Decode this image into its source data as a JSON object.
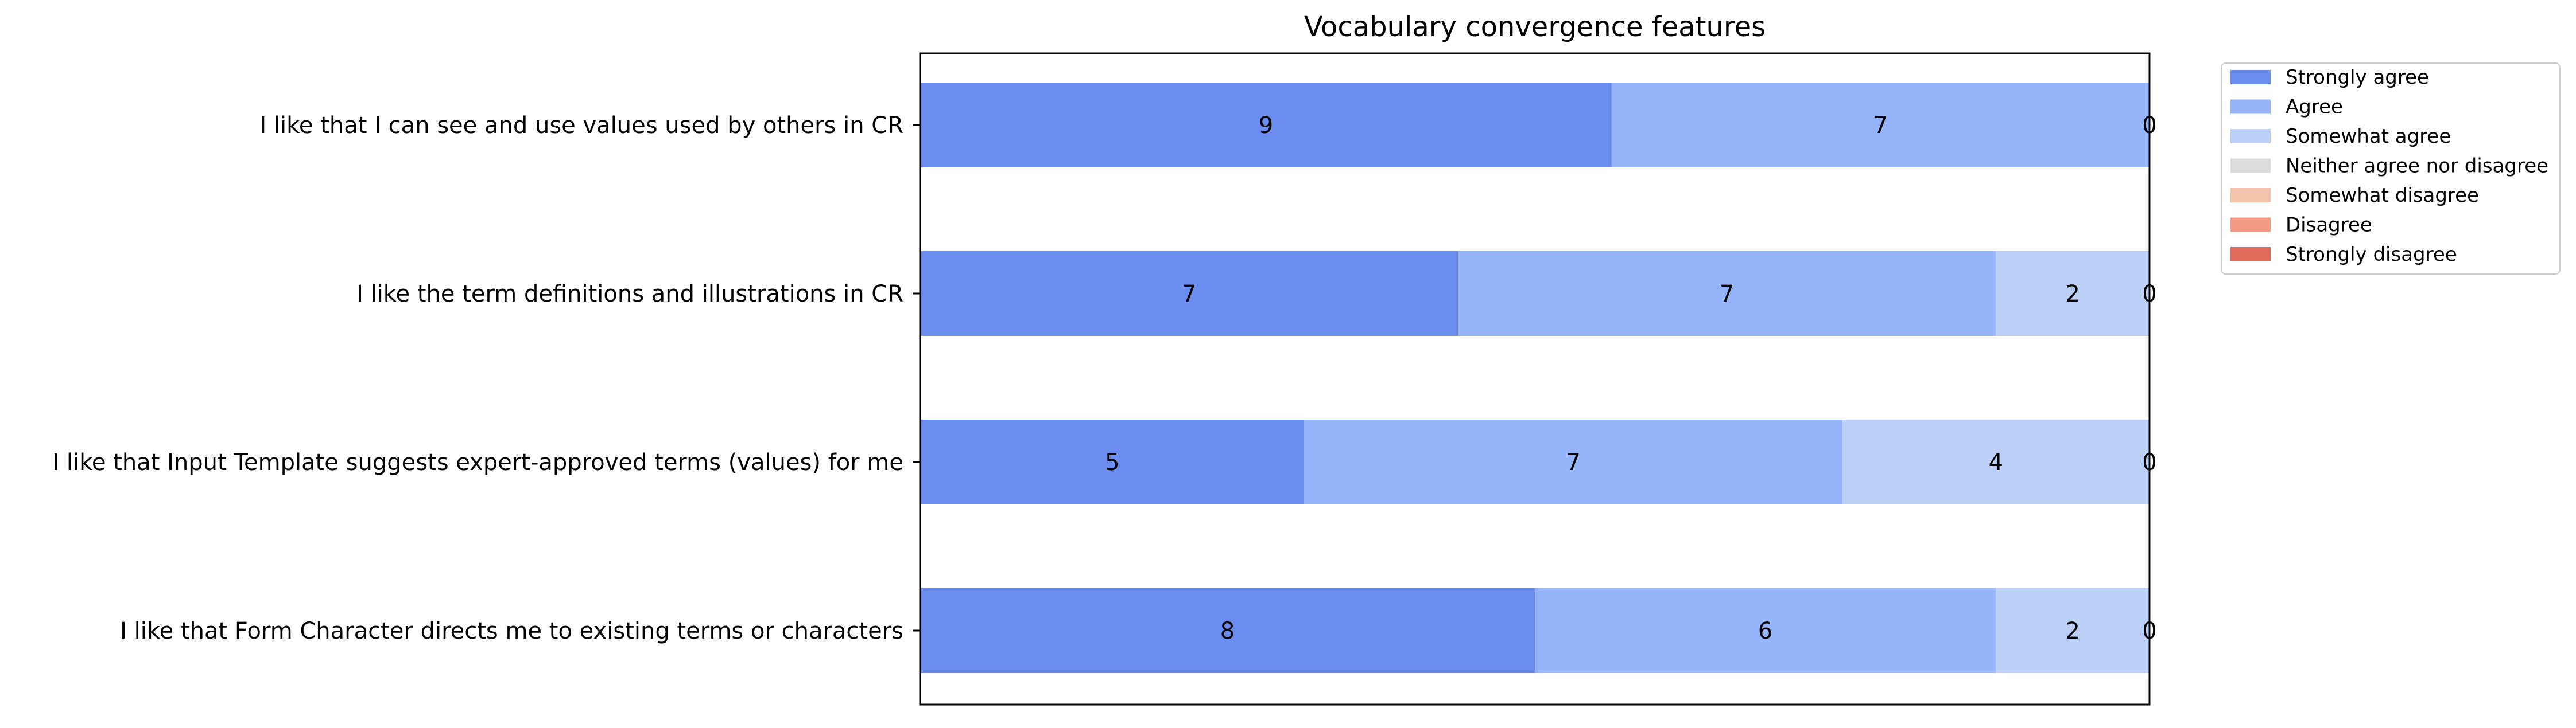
{
  "chart_data": {
    "type": "bar",
    "orientation": "horizontal",
    "stacked": true,
    "title": "Vocabulary convergence features",
    "xlabel": "",
    "ylabel": "",
    "xlim": [
      0,
      16
    ],
    "x_ticks_visible": false,
    "y_ticks_visible": true,
    "grid": false,
    "legend_position": "outside-top-right",
    "categories": [
      "I like that I can see and use values used by others in CR",
      "I like the term definitions and illustrations in CR",
      "I like that Input Template suggests expert-approved terms (values) for me",
      "I like that Form Character directs me to existing terms or characters"
    ],
    "series": [
      {
        "name": "Strongly agree",
        "color": "#6b8def",
        "values": [
          9,
          7,
          5,
          8
        ]
      },
      {
        "name": "Agree",
        "color": "#96b4fa",
        "values": [
          7,
          7,
          7,
          6
        ]
      },
      {
        "name": "Somewhat agree",
        "color": "#bcd0f7",
        "values": [
          0,
          2,
          4,
          2
        ]
      },
      {
        "name": "Neither agree nor disagree",
        "color": "#dcdcdc",
        "values": [
          0,
          0,
          0,
          0
        ]
      },
      {
        "name": "Somewhat disagree",
        "color": "#f5c3ab",
        "values": [
          0,
          0,
          0,
          0
        ]
      },
      {
        "name": "Disagree",
        "color": "#f29b82",
        "values": [
          0,
          0,
          0,
          0
        ]
      },
      {
        "name": "Strongly disagree",
        "color": "#e16b5a",
        "values": [
          0,
          0,
          0,
          0
        ]
      }
    ],
    "zero_labels": [
      "0",
      "0",
      "0",
      "0"
    ]
  }
}
